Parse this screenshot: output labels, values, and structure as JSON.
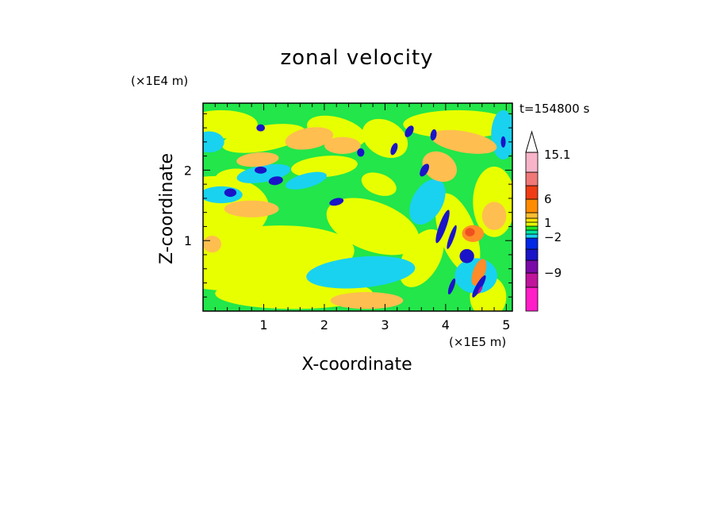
{
  "chart_data": {
    "type": "heatmap",
    "title": "zonal velocity",
    "xlabel": "X-coordinate",
    "ylabel": "Z-coordinate",
    "x_multiplier_label": "(×1E5 m)",
    "y_multiplier_label": "(×1E4 m)",
    "time_label": "t=154800 s",
    "xlim": [
      0,
      5.1
    ],
    "ylim": [
      0,
      2.95
    ],
    "x_ticks": [
      "1",
      "2",
      "3",
      "4",
      "5"
    ],
    "y_ticks": [
      "1",
      "2"
    ],
    "colorbar": {
      "levels": [
        {
          "color": "#ff1ec8"
        },
        {
          "color": "#c0149c"
        },
        {
          "color": "#7a0aa8"
        },
        {
          "color": "#1a14c8"
        },
        {
          "color": "#0028e6"
        },
        {
          "color": "#19d2f0"
        },
        {
          "color": "#00e6a0"
        },
        {
          "color": "#22e622"
        },
        {
          "color": "#e6ff00"
        },
        {
          "color": "#ffe600"
        },
        {
          "color": "#ffbe32"
        },
        {
          "color": "#ff8c00"
        },
        {
          "color": "#f03c14"
        },
        {
          "color": "#f07878"
        },
        {
          "color": "#f8b4c8"
        },
        {
          "color": "#ffffff"
        }
      ],
      "tick_labels": [
        "15.1",
        "6",
        "1",
        "−2",
        "−9"
      ]
    },
    "palette": {
      "yellow": "#e8ff00",
      "green": "#22e64a",
      "cyan": "#19d2f0",
      "orange": "#ffbe50",
      "darkorange": "#ff8c28",
      "blue": "#1a14c8",
      "red": "#f05020",
      "magenta": "#c0149c"
    }
  }
}
